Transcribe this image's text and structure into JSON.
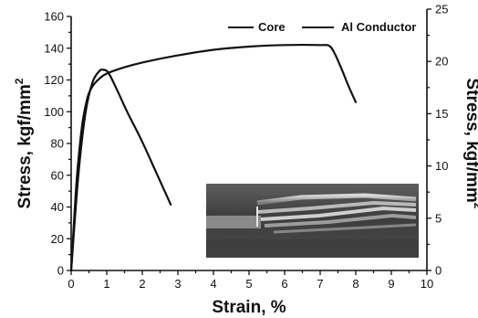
{
  "chart_data": {
    "type": "line",
    "xlabel": "Strain, %",
    "ylabel_left": "Stress, kgf/mm",
    "ylabel_right": "Stress, kgf/mm",
    "ylabel_superscript": "2",
    "xlim": [
      0,
      10
    ],
    "ylim_left": [
      0,
      160
    ],
    "ylim_right": [
      0,
      25
    ],
    "xticks": [
      "0",
      "1",
      "2",
      "3",
      "4",
      "5",
      "6",
      "7",
      "8",
      "9",
      "10"
    ],
    "yticks_left": [
      "0",
      "20",
      "40",
      "60",
      "80",
      "100",
      "120",
      "140",
      "160"
    ],
    "yticks_right": [
      "0",
      "5",
      "10",
      "15",
      "20",
      "25"
    ],
    "grid": false,
    "legend_position": "top-right",
    "series": [
      {
        "name": "Core",
        "axis": "left",
        "x": [
          0.0,
          0.15,
          0.3,
          0.45,
          0.6,
          0.8,
          1.0,
          1.5,
          2.0,
          3.0,
          4.0,
          5.0,
          6.0,
          7.0,
          7.25,
          7.4,
          7.6,
          7.8,
          8.0
        ],
        "y": [
          0,
          55,
          90,
          108,
          116,
          121,
          124,
          128,
          131,
          135.5,
          139,
          141,
          142,
          142,
          141.5,
          137,
          127,
          116,
          106
        ]
      },
      {
        "name": "Al Conductor",
        "axis": "right",
        "x": [
          0.0,
          0.2,
          0.4,
          0.6,
          0.8,
          0.9,
          1.0,
          1.1,
          1.3,
          1.6,
          2.0,
          2.4,
          2.8
        ],
        "y": [
          0,
          9,
          15,
          18,
          19.1,
          19.2,
          19.1,
          18.6,
          17.2,
          15.0,
          12.3,
          9.3,
          6.3
        ]
      }
    ],
    "inset_image": "stranded-cable-photo"
  }
}
